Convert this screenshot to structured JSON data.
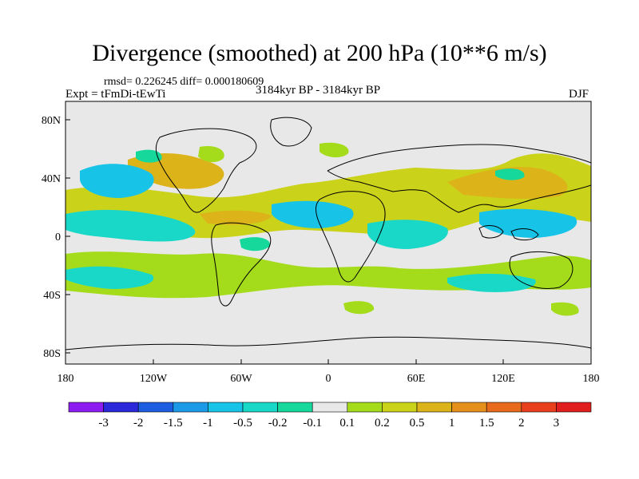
{
  "title": "Divergence (smoothed) at 200 hPa (10**6 m/s)",
  "stats_line": "rmsd= 0.226245 diff= 0.000180609",
  "experiment_label": "Expt = tFmDi-tEwTi",
  "period_label": "3184kyr BP - 3184kyr BP",
  "season_label": "DJF",
  "lat_ticks": [
    "80N",
    "40N",
    "0",
    "40S",
    "80S"
  ],
  "lon_ticks": [
    "180",
    "120W",
    "60W",
    "0",
    "60E",
    "120E",
    "180"
  ],
  "colorbar": {
    "labels": [
      "-3",
      "-2",
      "-1.5",
      "-1",
      "-0.5",
      "-0.2",
      "-0.1",
      "0.1",
      "0.2",
      "0.5",
      "1",
      "1.5",
      "2",
      "3"
    ],
    "colors": [
      "#8c1cf0",
      "#2a28d8",
      "#1d5ee0",
      "#1c9ae8",
      "#17c4e8",
      "#1ad8c8",
      "#16d89a",
      "#e8e8e8",
      "#a4dc1c",
      "#cad21a",
      "#dcb41a",
      "#e6901c",
      "#e86a1c",
      "#e8401c",
      "#e01e1e"
    ]
  },
  "colors": {
    "background_neutral": "#e8e8e8",
    "positive_weak": "#a4dc1c",
    "positive_mid": "#cad21a",
    "positive_strong": "#dcb41a",
    "negative_weak": "#16d89a",
    "negative_mid": "#1ad8c8",
    "negative_strong": "#17c4e8"
  }
}
